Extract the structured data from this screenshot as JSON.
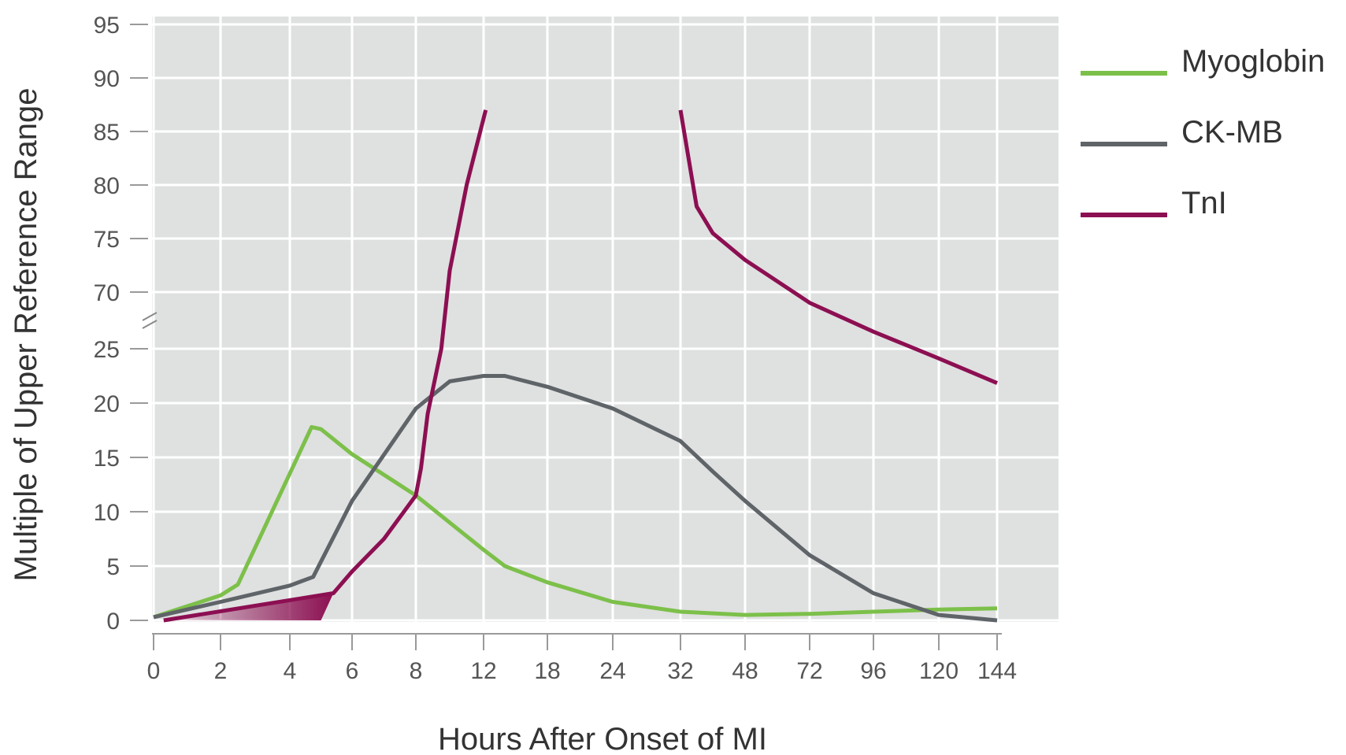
{
  "chart_data": {
    "type": "line",
    "title": "",
    "xlabel": "Hours After Onset of MI",
    "ylabel": "Multiple of Upper Reference Range",
    "x_ticks": [
      "0",
      "2",
      "4",
      "6",
      "8",
      "12",
      "18",
      "24",
      "32",
      "48",
      "72",
      "96",
      "120",
      "144"
    ],
    "y_ticks": [
      "0",
      "5",
      "10",
      "15",
      "20",
      "25",
      "70",
      "75",
      "80",
      "85",
      "90",
      "95"
    ],
    "y_axis_break": {
      "from": 25,
      "to": 70
    },
    "grid": true,
    "legend_position": "right",
    "series": [
      {
        "name": "Myoglobin",
        "color": "#7cc04a",
        "points": [
          [
            0,
            0.3
          ],
          [
            2,
            2.3
          ],
          [
            2.5,
            3.3
          ],
          [
            4.7,
            17.8
          ],
          [
            5,
            17.6
          ],
          [
            6,
            15.3
          ],
          [
            8,
            11.5
          ],
          [
            12,
            6.5
          ],
          [
            14,
            5
          ],
          [
            18,
            3.5
          ],
          [
            24,
            1.7
          ],
          [
            32,
            0.8
          ],
          [
            48,
            0.5
          ],
          [
            72,
            0.6
          ],
          [
            96,
            0.8
          ],
          [
            120,
            1
          ],
          [
            144,
            1.1
          ]
        ]
      },
      {
        "name": "CK-MB",
        "color": "#5f6468",
        "points": [
          [
            0,
            0.3
          ],
          [
            2,
            1.7
          ],
          [
            4,
            3.2
          ],
          [
            4.75,
            4
          ],
          [
            6,
            11
          ],
          [
            8,
            19.5
          ],
          [
            10,
            22
          ],
          [
            12,
            22.5
          ],
          [
            14,
            22.5
          ],
          [
            18,
            21.5
          ],
          [
            24,
            19.5
          ],
          [
            32,
            16.5
          ],
          [
            40,
            13.7
          ],
          [
            48,
            11
          ],
          [
            72,
            6
          ],
          [
            96,
            2.5
          ],
          [
            120,
            0.5
          ],
          [
            144,
            0
          ]
        ]
      },
      {
        "name": "TnI",
        "color": "#8c0f52",
        "segments": [
          [
            [
              0.3,
              0
            ],
            [
              5.4,
              2.5
            ],
            [
              6,
              4.5
            ],
            [
              7,
              7.5
            ],
            [
              8,
              11.5
            ],
            [
              8.3,
              14
            ],
            [
              8.7,
              19
            ],
            [
              9.5,
              25
            ],
            [
              10,
              72
            ],
            [
              11,
              80
            ],
            [
              12.2,
              87
            ]
          ],
          [
            [
              32,
              87
            ],
            [
              36,
              78
            ],
            [
              40,
              75.5
            ],
            [
              48,
              73
            ],
            [
              72,
              69
            ],
            [
              96,
              66.3
            ],
            [
              120,
              63.8
            ],
            [
              144,
              61.5
            ]
          ]
        ],
        "shaded_region": [
          [
            0.3,
            0
          ],
          [
            5.4,
            2.5
          ],
          [
            5,
            0
          ]
        ]
      }
    ]
  }
}
